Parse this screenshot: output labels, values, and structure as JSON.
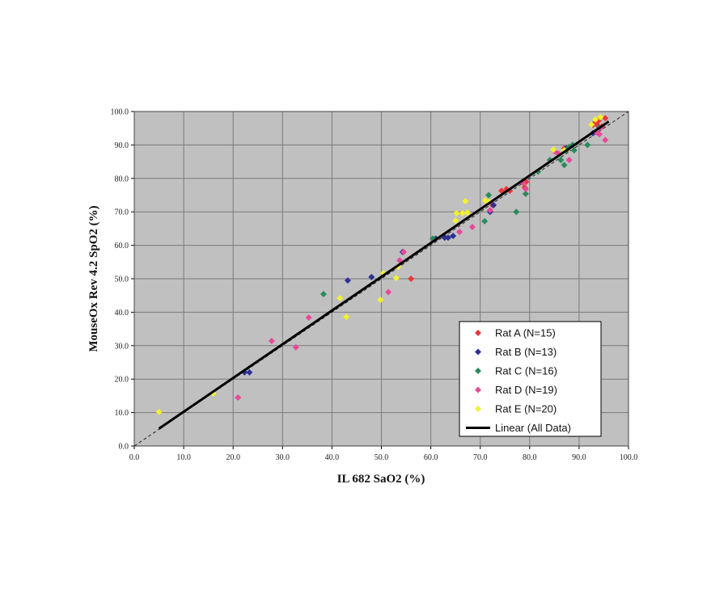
{
  "chart_data": {
    "type": "scatter",
    "x_label": "IL 682 SaO2 (%)",
    "y_label": "MouseOx Rev 4.2 SpO2 (%)",
    "xlim": [
      0,
      100
    ],
    "ylim": [
      0,
      100
    ],
    "xticks": [
      {
        "value": 0,
        "label": "0.0"
      },
      {
        "value": 10,
        "label": "10.0"
      },
      {
        "value": 20,
        "label": "20.0"
      },
      {
        "value": 30,
        "label": "30.0"
      },
      {
        "value": 40,
        "label": "40.0"
      },
      {
        "value": 50,
        "label": "50.0"
      },
      {
        "value": 60,
        "label": "60.0"
      },
      {
        "value": 70,
        "label": "70.0"
      },
      {
        "value": 80,
        "label": "80.0"
      },
      {
        "value": 90,
        "label": "90.0"
      },
      {
        "value": 100,
        "label": "100.0"
      }
    ],
    "yticks": [
      {
        "value": 0,
        "label": "0.0"
      },
      {
        "value": 10,
        "label": "10.0"
      },
      {
        "value": 20,
        "label": "20.0"
      },
      {
        "value": 30,
        "label": "30.0"
      },
      {
        "value": 40,
        "label": "40.0"
      },
      {
        "value": 50,
        "label": "50.0"
      },
      {
        "value": 60,
        "label": "60.0"
      },
      {
        "value": 70,
        "label": "70.0"
      },
      {
        "value": 80,
        "label": "80.0"
      },
      {
        "value": 90,
        "label": "90.0"
      },
      {
        "value": 100,
        "label": "100.0"
      }
    ],
    "grid": true,
    "legend_position": "lower right",
    "series": [
      {
        "name": "Rat A (N=15)",
        "color": "#e8383c",
        "x": [
          56,
          74.3,
          75.3,
          76,
          79,
          79.3,
          85.8,
          87,
          92.8,
          93.3,
          94,
          94.6,
          95.3,
          93.8,
          72.5
        ],
        "values": [
          50,
          76.3,
          76.8,
          76.3,
          77.3,
          79,
          87.4,
          89,
          96,
          96.8,
          97.3,
          95.5,
          98,
          95.8,
          72
        ]
      },
      {
        "name": "Rat B (N=13)",
        "color": "#2e3192",
        "x": [
          22.3,
          23.3,
          43.2,
          48,
          54.3,
          61,
          62.8,
          63.5,
          64.5,
          72.7,
          72,
          87.4,
          92.8
        ],
        "values": [
          22,
          22,
          49.5,
          50.5,
          58,
          62,
          62.3,
          62.3,
          62.8,
          72,
          70,
          89,
          93.5
        ]
      },
      {
        "name": "Rat C (N=16)",
        "color": "#2a8a5a",
        "x": [
          38.3,
          60.4,
          70.9,
          71.7,
          77.3,
          79.2,
          81.7,
          84.1,
          86.3,
          87,
          88,
          88.7,
          89,
          91.7,
          94.1,
          87.4
        ],
        "values": [
          45.4,
          62,
          67.2,
          75,
          70,
          75.4,
          82,
          85.5,
          85.5,
          84,
          89.4,
          90,
          88.4,
          90,
          95.2,
          88.4
        ]
      },
      {
        "name": "Rat D (N=19)",
        "color": "#e8489a",
        "x": [
          21,
          27.8,
          32.7,
          35.3,
          51.4,
          53.7,
          54.5,
          65.8,
          68.4,
          72,
          78.6,
          79.2,
          85.1,
          85.8,
          88,
          93.6,
          94.1,
          95.3,
          94.4
        ],
        "values": [
          14.5,
          31.4,
          29.5,
          38.4,
          46,
          55.5,
          58,
          64,
          65.5,
          70.5,
          78.7,
          76.8,
          88,
          87.4,
          85.5,
          93.7,
          93.2,
          91.5,
          95.2
        ]
      },
      {
        "name": "Rat E (N=20)",
        "color": "#f2f230",
        "x": [
          5,
          16,
          41.6,
          42.9,
          49.8,
          50.4,
          53,
          53.4,
          65,
          65.2,
          66.4,
          67,
          67.4,
          71,
          71.8,
          84.8,
          87,
          92.5,
          93.3,
          94.3
        ],
        "values": [
          10.2,
          15.7,
          44.2,
          38.6,
          43.7,
          51.7,
          50.2,
          53.6,
          67.4,
          69.6,
          69.6,
          73.2,
          69.8,
          73.4,
          73,
          88.6,
          88.4,
          96.1,
          97.6,
          98.3
        ]
      },
      {
        "name": "Linear (All Data)",
        "color": "#000000",
        "kind": "line",
        "x": [
          5,
          96
        ],
        "values": [
          5.2,
          97
        ]
      }
    ]
  }
}
